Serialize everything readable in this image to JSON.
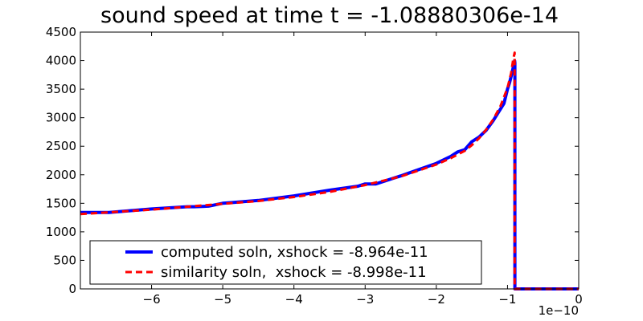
{
  "chart_data": {
    "type": "line",
    "title": "sound speed at time t = -1.08880306e-14",
    "xlabel": "",
    "ylabel": "",
    "x_offset_label": "1e−10",
    "xlim": [
      -7.0,
      0.0
    ],
    "ylim": [
      0,
      4500
    ],
    "xticks": [
      -6,
      -5,
      -4,
      -3,
      -2,
      -1,
      0
    ],
    "xtick_labels": [
      "−6",
      "−5",
      "−4",
      "−3",
      "−2",
      "−1",
      "0"
    ],
    "yticks": [
      0,
      500,
      1000,
      1500,
      2000,
      2500,
      3000,
      3500,
      4000,
      4500
    ],
    "ytick_labels": [
      "0",
      "500",
      "1000",
      "1500",
      "2000",
      "2500",
      "3000",
      "3500",
      "4000",
      "4500"
    ],
    "grid": false,
    "legend_position": "lower-left",
    "series": [
      {
        "name": "computed soln, xshock = -8.964e-11",
        "color": "#0000ff",
        "style": "solid",
        "x": [
          -7.0,
          -6.6,
          -6.0,
          -5.5,
          -5.4,
          -5.2,
          -5.0,
          -4.9,
          -4.5,
          -4.0,
          -3.5,
          -3.1,
          -3.0,
          -2.85,
          -2.6,
          -2.5,
          -2.0,
          -1.8,
          -1.7,
          -1.6,
          -1.5,
          -1.4,
          -1.3,
          -1.2,
          -1.1,
          -1.05,
          -1.0,
          -0.97,
          -0.93,
          -0.9,
          -0.896,
          -0.896,
          0.0
        ],
        "y": [
          1340,
          1340,
          1400,
          1440,
          1440,
          1450,
          1500,
          1510,
          1550,
          1630,
          1730,
          1800,
          1840,
          1840,
          1940,
          1980,
          2200,
          2320,
          2400,
          2440,
          2580,
          2660,
          2780,
          2950,
          3150,
          3250,
          3500,
          3620,
          3820,
          4000,
          3960,
          0,
          0
        ]
      },
      {
        "name": "similarity soln,  xshock = -8.998e-11",
        "color": "#ff0000",
        "style": "dashed",
        "x": [
          -7.0,
          -6.5,
          -6.0,
          -5.5,
          -5.0,
          -4.5,
          -4.0,
          -3.5,
          -3.0,
          -2.5,
          -2.0,
          -1.8,
          -1.6,
          -1.5,
          -1.4,
          -1.3,
          -1.2,
          -1.1,
          -1.0,
          -0.95,
          -0.92,
          -0.9,
          -0.9,
          0.0
        ],
        "y": [
          1310,
          1350,
          1390,
          1440,
          1490,
          1540,
          1610,
          1700,
          1820,
          1970,
          2180,
          2290,
          2420,
          2520,
          2640,
          2790,
          2970,
          3200,
          3520,
          3780,
          4020,
          4140,
          0,
          0
        ]
      }
    ]
  }
}
